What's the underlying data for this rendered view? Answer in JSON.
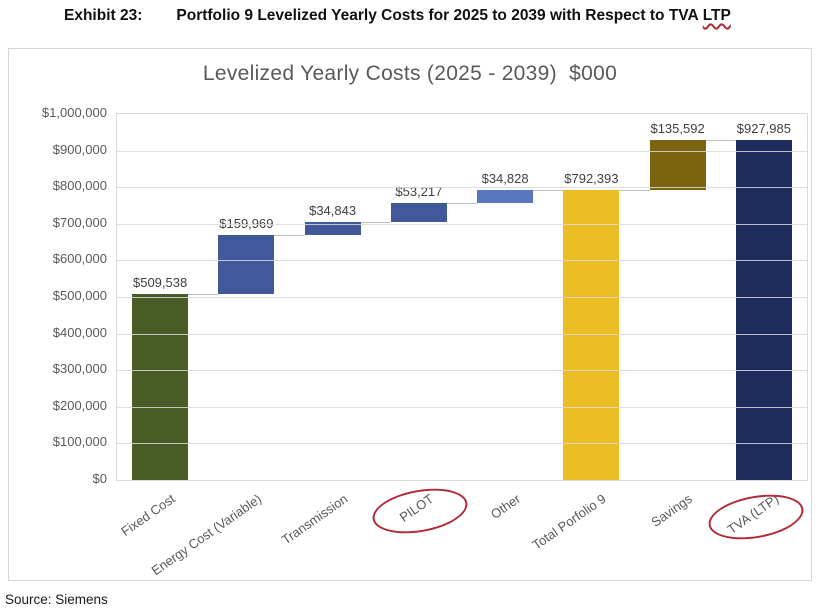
{
  "header": {
    "exhibit_label": "Exhibit 23:",
    "title_before": "Portfolio 9 Levelized Yearly Costs for 2025 to 2039 with Respect to TVA",
    "title_flagged": "LTP"
  },
  "footer": {
    "source": "Source: Siemens"
  },
  "chart_data": {
    "type": "bar",
    "subtype": "waterfall",
    "title": "Levelized Yearly Costs (2025 - 2039)  $000",
    "xlabel": "",
    "ylabel": "",
    "ylim": [
      0,
      1000000
    ],
    "ytick_step": 100000,
    "ytick_prefix": "$",
    "grid": true,
    "legend": false,
    "categories": [
      "Fixed Cost",
      "Energy Cost (Variable)",
      "Transmission",
      "PILOT",
      "Other",
      "Total Porfolio 9",
      "Savings",
      "TVA (LTP)"
    ],
    "bars": [
      {
        "label": "Fixed Cost",
        "value": 509538,
        "base": 0,
        "end": 509538,
        "color": "#495c26",
        "circled": false
      },
      {
        "label": "Energy Cost (Variable)",
        "value": 159969,
        "base": 509538,
        "end": 669507,
        "color": "#41589b",
        "circled": false
      },
      {
        "label": "Transmission",
        "value": 34843,
        "base": 669507,
        "end": 704350,
        "color": "#41589b",
        "circled": false
      },
      {
        "label": "PILOT",
        "value": 53217,
        "base": 704350,
        "end": 757567,
        "color": "#41589b",
        "circled": true
      },
      {
        "label": "Other",
        "value": 34828,
        "base": 757567,
        "end": 792395,
        "color": "#5877c0",
        "circled": false
      },
      {
        "label": "Total Porfolio 9",
        "value": 792393,
        "base": 0,
        "end": 792393,
        "color": "#e9bd23",
        "circled": false
      },
      {
        "label": "Savings",
        "value": 135592,
        "base": 792393,
        "end": 927985,
        "color": "#7a640f",
        "circled": false
      },
      {
        "label": "TVA (LTP)",
        "value": 927985,
        "base": 0,
        "end": 927985,
        "color": "#1f2d5e",
        "circled": true
      }
    ],
    "annotation_color": "#b02a37",
    "gridline_color": "#d9d9d9",
    "connector_color": "#c0c0c0",
    "axis_text_color": "#595959",
    "label_text_color": "#404040",
    "title_color": "#595959"
  }
}
